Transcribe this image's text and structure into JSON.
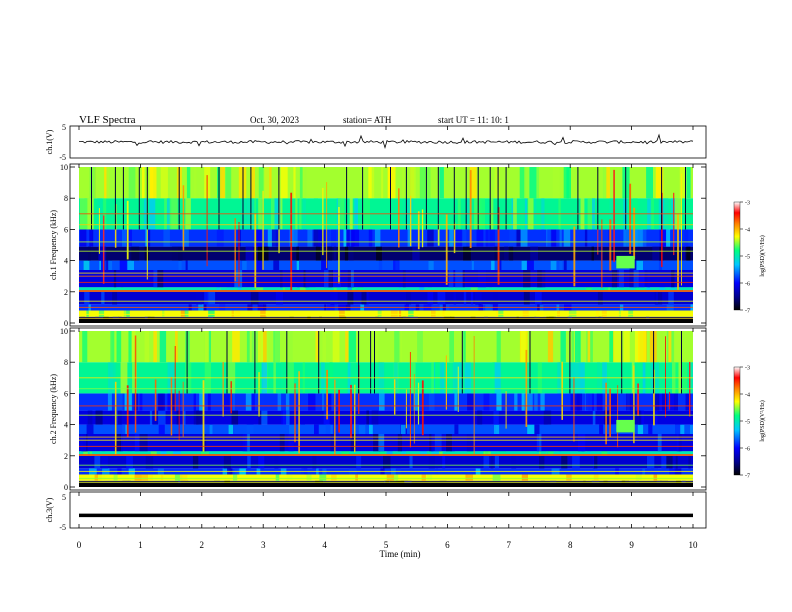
{
  "header": {
    "title": "VLF  Spectra",
    "date": "Oct. 30, 2023",
    "station": "station= ATH",
    "start": "start  UT  =    11: 10: 1"
  },
  "chart_data": [
    {
      "type": "line",
      "panel": "ch1-waveform",
      "ylabel": "ch.1(V)",
      "ylim": [
        -5,
        5
      ],
      "ticks": [
        "5",
        "-5"
      ],
      "baseline": 0
    },
    {
      "type": "heatmap",
      "panel": "ch1-spectrogram",
      "ylabel": "ch.1  Frequency (kHz)",
      "ylim": [
        0,
        10
      ],
      "yticks": [
        "0",
        "2",
        "4",
        "6",
        "8",
        "10"
      ],
      "colorbar": {
        "label": "log(PSD)(V²/Hz)",
        "ticks": [
          "-3",
          "-4",
          "-5",
          "-6",
          "-7"
        ],
        "range": [
          -7,
          -3
        ]
      }
    },
    {
      "type": "heatmap",
      "panel": "ch2-spectrogram",
      "ylabel": "ch.2  Frequency (kHz)",
      "ylim": [
        0,
        10
      ],
      "yticks": [
        "0",
        "2",
        "4",
        "6",
        "8",
        "10"
      ],
      "colorbar": {
        "label": "log(PSD)(V²/Hz)",
        "ticks": [
          "-3",
          "-4",
          "-5",
          "-6",
          "-7"
        ],
        "range": [
          -7,
          -3
        ]
      }
    },
    {
      "type": "line",
      "panel": "ch3-waveform",
      "ylabel": "ch.3(V)",
      "ylim": [
        -5,
        5
      ],
      "ticks": [
        "5",
        "-5"
      ],
      "baseline": -1.5,
      "xlabel": "Time  (min)",
      "xlim": [
        0,
        10
      ],
      "xticks": [
        "0",
        "1",
        "2",
        "3",
        "4",
        "5",
        "6",
        "7",
        "8",
        "9",
        "10"
      ]
    }
  ],
  "colors": {
    "scale": [
      "#000000",
      "#00008b",
      "#0000ff",
      "#00c8ff",
      "#00ff80",
      "#ffff00",
      "#ff8000",
      "#ff0000",
      "#ffffff"
    ]
  }
}
